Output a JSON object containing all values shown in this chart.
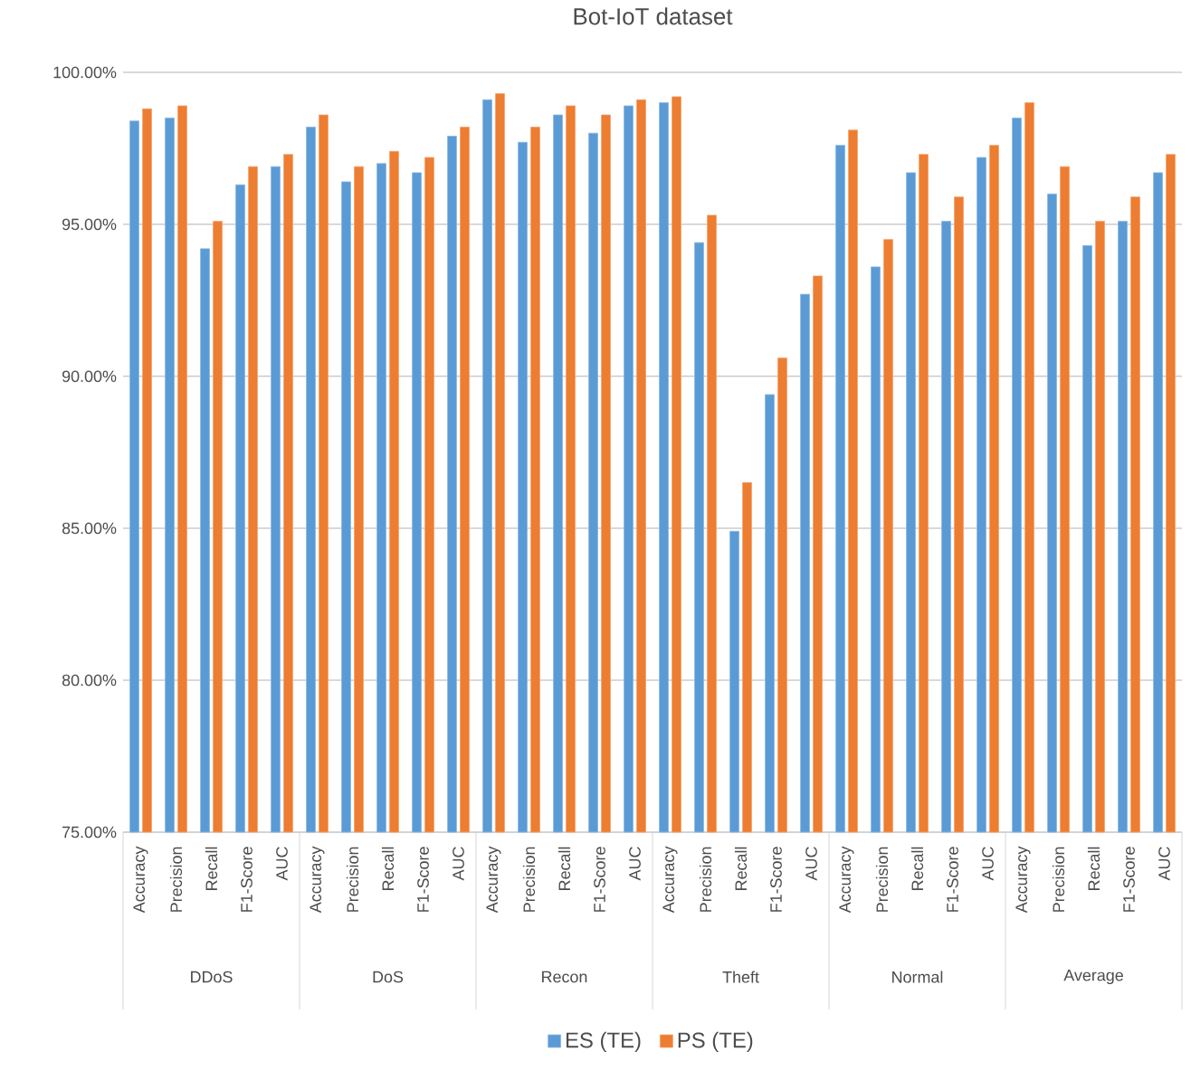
{
  "chart_data": {
    "type": "bar",
    "title": "Bot-IoT dataset",
    "categories": [
      "Accuracy",
      "Precision",
      "Recall",
      "F1-Score",
      "AUC",
      "Accuracy",
      "Precision",
      "Recall",
      "F1-Score",
      "AUC",
      "Accuracy",
      "Precision",
      "Recall",
      "F1-Score",
      "AUC",
      "Accuracy",
      "Precision",
      "Recall",
      "F1-Score",
      "AUC",
      "Accuracy",
      "Precision",
      "Recall",
      "F1-Score",
      "AUC",
      "Accuracy",
      "Precision",
      "Recall",
      "F1-Score",
      "AUC"
    ],
    "annotations": [
      "DDoS",
      "DoS",
      "Recon",
      "Theft",
      "Normal",
      "Average"
    ],
    "series": [
      {
        "name": "ES (TE)",
        "color": "#5b9bd5",
        "values": [
          98.4,
          98.5,
          94.2,
          96.3,
          96.9,
          98.2,
          96.4,
          97.0,
          96.7,
          97.9,
          99.1,
          97.7,
          98.6,
          98.0,
          98.9,
          99.0,
          94.4,
          84.9,
          89.4,
          92.7,
          97.6,
          93.6,
          96.7,
          95.1,
          97.2,
          98.5,
          96.0,
          94.3,
          95.1,
          96.7
        ]
      },
      {
        "name": "PS (TE)",
        "color": "#ed7d31",
        "values": [
          98.8,
          98.9,
          95.1,
          96.9,
          97.3,
          98.6,
          96.9,
          97.4,
          97.2,
          98.2,
          99.3,
          98.2,
          98.9,
          98.6,
          99.1,
          99.2,
          95.3,
          86.5,
          90.6,
          93.3,
          98.1,
          94.5,
          97.3,
          95.9,
          97.6,
          99.0,
          96.9,
          95.1,
          95.9,
          97.3
        ]
      }
    ],
    "ylim": [
      75,
      100
    ],
    "yticks": [
      {
        "value": 75,
        "label": "75.00%"
      },
      {
        "value": 80,
        "label": "80.00%"
      },
      {
        "value": 85,
        "label": "85.00%"
      },
      {
        "value": 90,
        "label": "90.00%"
      },
      {
        "value": 95,
        "label": "95.00%"
      },
      {
        "value": 100,
        "label": "100.00%"
      }
    ],
    "grid": "y",
    "legend": "bottom"
  }
}
